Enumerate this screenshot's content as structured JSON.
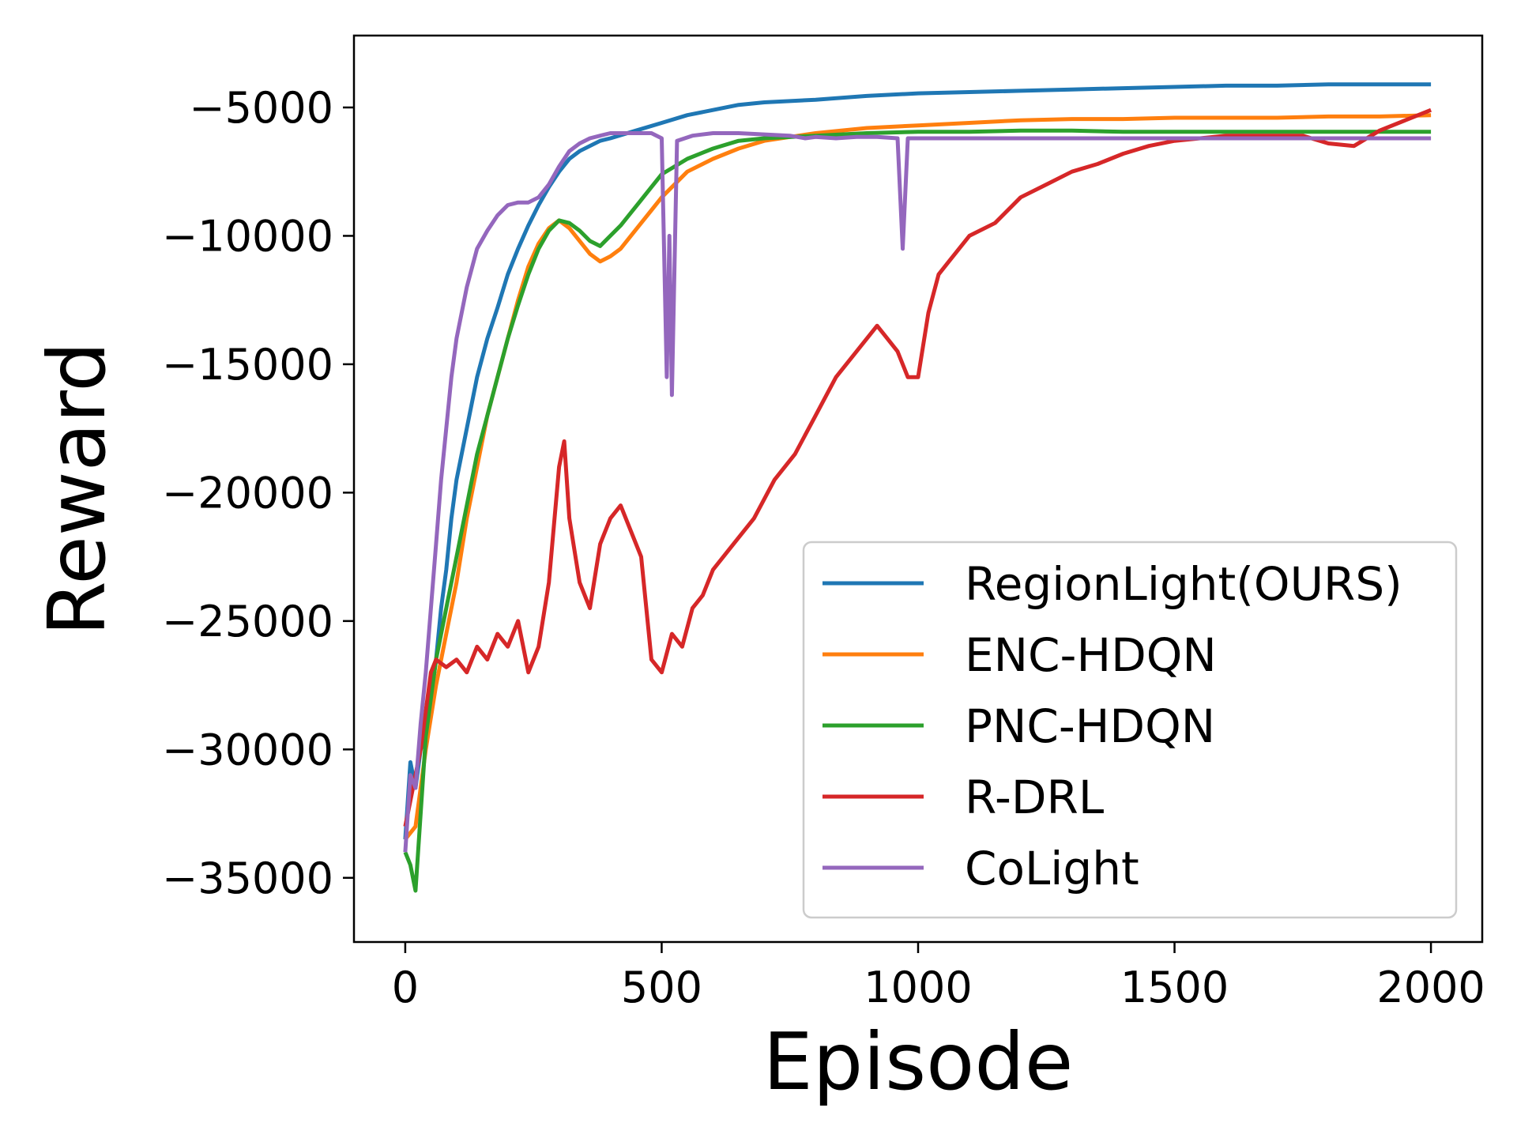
{
  "chart_data": {
    "type": "line",
    "xlabel": "Episode",
    "ylabel": "Reward",
    "xlim": [
      -100,
      2100
    ],
    "ylim": [
      -37500,
      -2200
    ],
    "xticks": [
      0,
      500,
      1000,
      1500,
      2000
    ],
    "yticks": [
      -5000,
      -10000,
      -15000,
      -20000,
      -25000,
      -30000,
      -35000
    ],
    "xtick_labels": [
      "0",
      "500",
      "1000",
      "1500",
      "2000"
    ],
    "ytick_labels": [
      "−5000",
      "−10000",
      "−15000",
      "−20000",
      "−25000",
      "−30000",
      "−35000"
    ],
    "grid": false,
    "legend_position": "lower-right",
    "series": [
      {
        "name": "RegionLight(OURS)",
        "color": "#1f77b4",
        "x": [
          0,
          10,
          20,
          30,
          40,
          50,
          60,
          70,
          80,
          90,
          100,
          120,
          140,
          160,
          180,
          200,
          220,
          240,
          260,
          280,
          300,
          320,
          340,
          360,
          380,
          400,
          450,
          500,
          550,
          600,
          650,
          700,
          800,
          900,
          1000,
          1100,
          1200,
          1300,
          1400,
          1500,
          1600,
          1700,
          1800,
          1900,
          2000
        ],
        "y": [
          -33500,
          -30500,
          -31500,
          -30000,
          -29500,
          -28000,
          -26500,
          -24500,
          -23000,
          -21000,
          -19500,
          -17500,
          -15500,
          -14000,
          -12800,
          -11500,
          -10500,
          -9600,
          -8800,
          -8100,
          -7500,
          -7000,
          -6700,
          -6500,
          -6300,
          -6200,
          -5900,
          -5600,
          -5300,
          -5100,
          -4900,
          -4800,
          -4700,
          -4550,
          -4450,
          -4400,
          -4350,
          -4300,
          -4250,
          -4200,
          -4150,
          -4150,
          -4100,
          -4100,
          -4100
        ]
      },
      {
        "name": "ENC-HDQN",
        "color": "#ff7f0e",
        "x": [
          0,
          20,
          40,
          60,
          80,
          100,
          120,
          140,
          160,
          180,
          200,
          220,
          240,
          260,
          280,
          300,
          320,
          340,
          360,
          380,
          400,
          420,
          440,
          460,
          480,
          500,
          550,
          600,
          650,
          700,
          800,
          900,
          1000,
          1100,
          1200,
          1300,
          1400,
          1500,
          1600,
          1700,
          1800,
          1900,
          2000
        ],
        "y": [
          -33500,
          -33000,
          -30000,
          -27500,
          -25500,
          -23500,
          -21000,
          -19000,
          -17000,
          -15500,
          -14000,
          -12500,
          -11200,
          -10300,
          -9700,
          -9400,
          -9700,
          -10200,
          -10700,
          -11000,
          -10800,
          -10500,
          -10000,
          -9500,
          -9000,
          -8500,
          -7500,
          -7000,
          -6600,
          -6300,
          -6000,
          -5800,
          -5700,
          -5600,
          -5500,
          -5450,
          -5450,
          -5400,
          -5400,
          -5400,
          -5350,
          -5350,
          -5300
        ]
      },
      {
        "name": "PNC-HDQN",
        "color": "#2ca02c",
        "x": [
          0,
          10,
          20,
          30,
          40,
          60,
          80,
          100,
          120,
          140,
          160,
          180,
          200,
          220,
          240,
          260,
          280,
          300,
          320,
          340,
          360,
          380,
          400,
          420,
          440,
          460,
          480,
          500,
          550,
          600,
          650,
          700,
          800,
          900,
          1000,
          1100,
          1200,
          1300,
          1400,
          1500,
          1600,
          1700,
          1800,
          1900,
          2000
        ],
        "y": [
          -34000,
          -34500,
          -35500,
          -32500,
          -29500,
          -26500,
          -24500,
          -22500,
          -20500,
          -18500,
          -17000,
          -15500,
          -14000,
          -12700,
          -11500,
          -10500,
          -9800,
          -9400,
          -9500,
          -9800,
          -10200,
          -10400,
          -10000,
          -9600,
          -9100,
          -8600,
          -8100,
          -7600,
          -7000,
          -6600,
          -6300,
          -6200,
          -6100,
          -6000,
          -5950,
          -5950,
          -5900,
          -5900,
          -5950,
          -5950,
          -5950,
          -5950,
          -5950,
          -5950,
          -5950
        ]
      },
      {
        "name": "R-DRL",
        "color": "#d62728",
        "x": [
          0,
          10,
          20,
          30,
          40,
          50,
          60,
          80,
          100,
          120,
          140,
          160,
          180,
          200,
          220,
          240,
          260,
          280,
          300,
          310,
          320,
          340,
          360,
          380,
          400,
          420,
          440,
          460,
          480,
          500,
          520,
          540,
          560,
          580,
          600,
          640,
          680,
          720,
          760,
          800,
          840,
          880,
          920,
          940,
          960,
          980,
          1000,
          1020,
          1040,
          1060,
          1080,
          1100,
          1150,
          1200,
          1250,
          1300,
          1350,
          1400,
          1450,
          1500,
          1550,
          1600,
          1650,
          1700,
          1750,
          1800,
          1850,
          1900,
          1950,
          2000
        ],
        "y": [
          -33000,
          -32000,
          -31000,
          -30000,
          -28500,
          -27000,
          -26500,
          -26800,
          -26500,
          -27000,
          -26000,
          -26500,
          -25500,
          -26000,
          -25000,
          -27000,
          -26000,
          -23500,
          -19000,
          -18000,
          -21000,
          -23500,
          -24500,
          -22000,
          -21000,
          -20500,
          -21500,
          -22500,
          -26500,
          -27000,
          -25500,
          -26000,
          -24500,
          -24000,
          -23000,
          -22000,
          -21000,
          -19500,
          -18500,
          -17000,
          -15500,
          -14500,
          -13500,
          -14000,
          -14500,
          -15500,
          -15500,
          -13000,
          -11500,
          -11000,
          -10500,
          -10000,
          -9500,
          -8500,
          -8000,
          -7500,
          -7200,
          -6800,
          -6500,
          -6300,
          -6200,
          -6100,
          -6100,
          -6100,
          -6100,
          -6400,
          -6500,
          -5900,
          -5500,
          -5100
        ]
      },
      {
        "name": "CoLight",
        "color": "#9467bd",
        "x": [
          0,
          10,
          20,
          30,
          40,
          50,
          60,
          70,
          80,
          90,
          100,
          120,
          140,
          160,
          180,
          200,
          220,
          240,
          260,
          280,
          300,
          320,
          340,
          360,
          380,
          400,
          440,
          480,
          500,
          510,
          515,
          520,
          530,
          560,
          600,
          650,
          700,
          750,
          780,
          800,
          840,
          880,
          920,
          960,
          970,
          980,
          1000,
          1100,
          1200,
          1300,
          1400,
          1500,
          1600,
          1700,
          1800,
          1900,
          2000
        ],
        "y": [
          -34000,
          -31000,
          -31500,
          -29000,
          -27000,
          -24500,
          -22000,
          -19500,
          -17500,
          -15500,
          -14000,
          -12000,
          -10500,
          -9800,
          -9200,
          -8800,
          -8700,
          -8700,
          -8500,
          -8000,
          -7300,
          -6700,
          -6400,
          -6200,
          -6100,
          -6000,
          -6000,
          -6000,
          -6200,
          -15500,
          -10000,
          -16200,
          -6300,
          -6100,
          -6000,
          -6000,
          -6050,
          -6100,
          -6200,
          -6150,
          -6200,
          -6150,
          -6150,
          -6200,
          -10500,
          -6200,
          -6200,
          -6200,
          -6200,
          -6200,
          -6200,
          -6200,
          -6200,
          -6200,
          -6200,
          -6200,
          -6200
        ]
      }
    ]
  }
}
